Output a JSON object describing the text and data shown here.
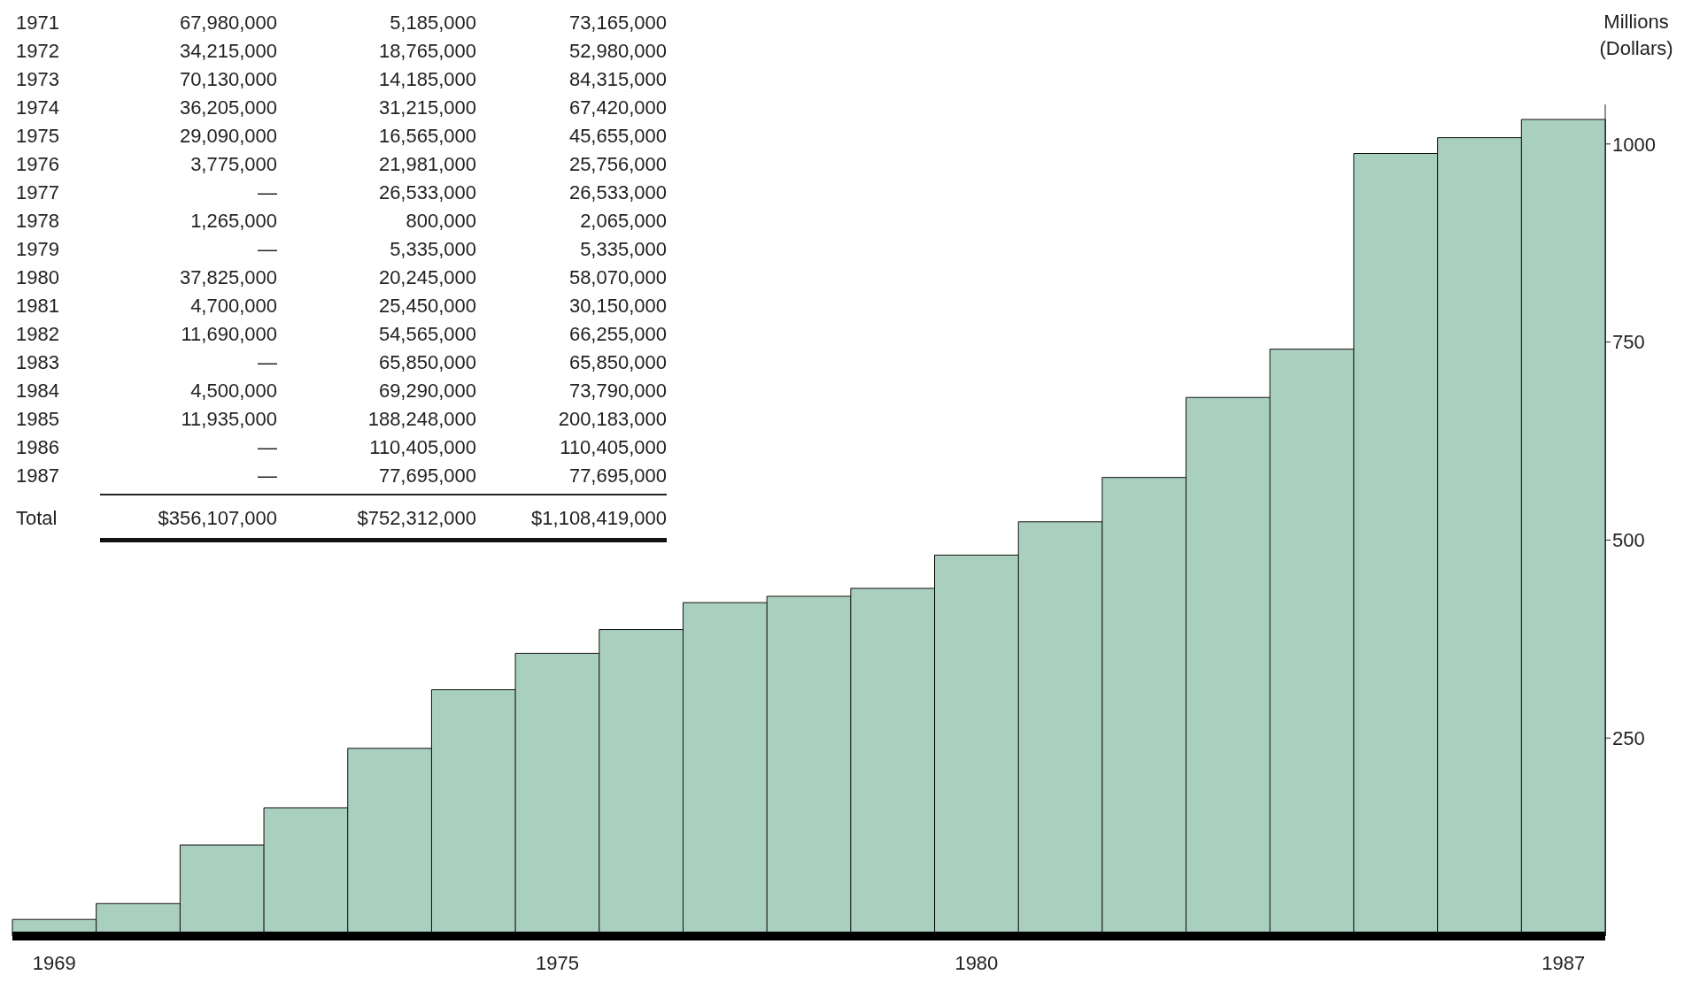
{
  "chart_data": {
    "type": "bar",
    "ylabel": "Millions (Dollars)",
    "categories": [
      "1969",
      null,
      null,
      null,
      null,
      null,
      "1975",
      null,
      null,
      null,
      null,
      "1980",
      null,
      null,
      null,
      null,
      null,
      null,
      "1987"
    ],
    "series": [
      {
        "color": "#a9cfbf",
        "values": [
          21,
          41,
          115,
          162,
          237,
          311,
          357,
          387,
          421,
          429,
          439,
          481,
          523,
          579,
          680,
          741,
          988,
          1008,
          1031
        ]
      }
    ],
    "ylim": [
      0,
      1050
    ],
    "yticks": [
      250,
      500,
      750,
      1000
    ],
    "grid": false,
    "legend": false,
    "annotations": [
      "1971\t67,980,000\t5,185,000\t73,165,000",
      "1972\t34,215,000\t18,765,000\t52,980,000",
      "1973\t70,130,000\t14,185,000\t84,315,000",
      "1974\t36,205,000\t31,215,000\t67,420,000",
      "1975\t29,090,000\t16,565,000\t45,655,000",
      "1976\t3,775,000\t21,981,000\t25,756,000",
      "1977\t—\t26,533,000\t26,533,000",
      "1978\t1,265,000\t800,000\t2,065,000",
      "1979\t—\t5,335,000\t5,335,000",
      "1980\t37,825,000\t20,245,000\t58,070,000",
      "1981\t4,700,000\t25,450,000\t30,150,000",
      "1982\t11,690,000\t54,565,000\t66,255,000",
      "1983\t—\t65,850,000\t65,850,000",
      "1984\t4,500,000\t69,290,000\t73,790,000",
      "1985\t11,935,000\t188,248,000\t200,183,000",
      "1986\t—\t110,405,000\t110,405,000",
      "1987\t—\t77,695,000\t77,695,000",
      "Total\t$356,107,000\t$752,312,000\t$1,108,419,000"
    ]
  }
}
